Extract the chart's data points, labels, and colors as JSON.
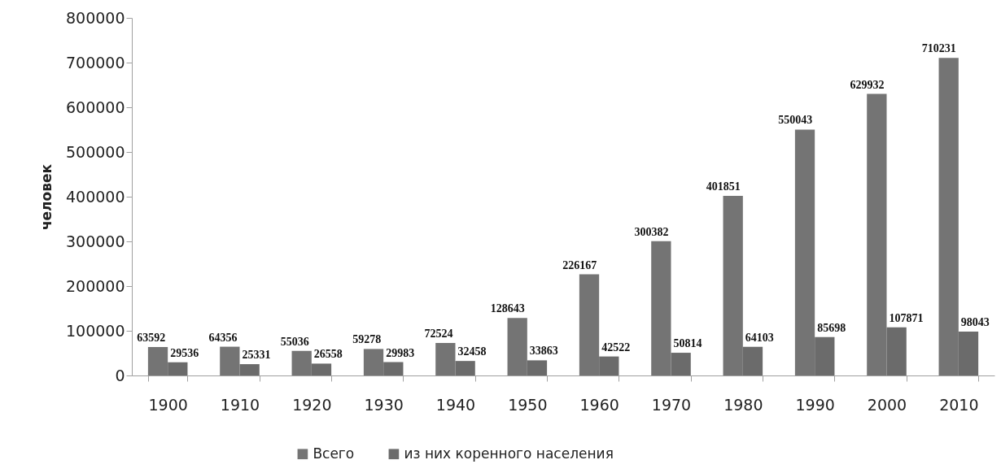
{
  "chart_data": {
    "type": "bar",
    "ylabel": "человек",
    "categories": [
      "1900",
      "1910",
      "1920",
      "1930",
      "1940",
      "1950",
      "1960",
      "1970",
      "1980",
      "1990",
      "2000",
      "2010"
    ],
    "series": [
      {
        "name": "Всего",
        "color": "#747474",
        "values": [
          63592,
          64356,
          55036,
          59278,
          72524,
          128643,
          226167,
          300382,
          401851,
          550043,
          629932,
          710231
        ]
      },
      {
        "name": "из них коренного населения",
        "color": "#6b6b6b",
        "values": [
          29536,
          25331,
          26558,
          29983,
          32458,
          33863,
          42522,
          50814,
          64103,
          85698,
          107871,
          98043
        ]
      }
    ],
    "ylim": [
      0,
      800000
    ],
    "yticks": [
      0,
      100000,
      200000,
      300000,
      400000,
      500000,
      600000,
      700000,
      800000
    ],
    "grid": false,
    "legend": "bottom",
    "data_labels": true
  }
}
